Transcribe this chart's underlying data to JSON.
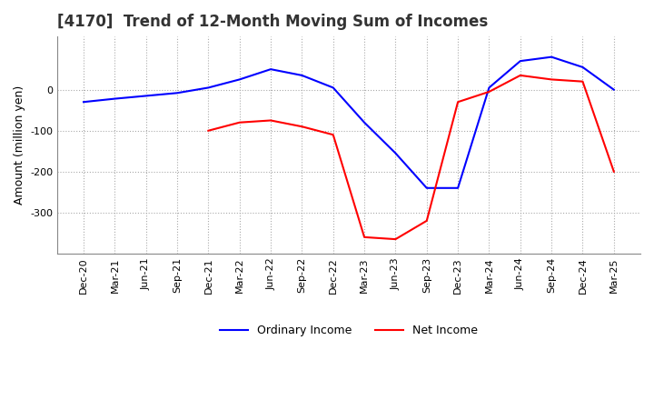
{
  "title": "[4170]  Trend of 12-Month Moving Sum of Incomes",
  "ylabel": "Amount (million yen)",
  "legend_labels": [
    "Ordinary Income",
    "Net Income"
  ],
  "line_colors": [
    "#0000ff",
    "#ff0000"
  ],
  "background_color": "#ffffff",
  "grid_color": "#aaaaaa",
  "x_labels": [
    "Dec-20",
    "Mar-21",
    "Jun-21",
    "Sep-21",
    "Dec-21",
    "Mar-22",
    "Jun-22",
    "Sep-22",
    "Dec-22",
    "Mar-23",
    "Jun-23",
    "Sep-23",
    "Dec-23",
    "Mar-24",
    "Jun-24",
    "Sep-24",
    "Dec-24",
    "Mar-25"
  ],
  "ordinary_income": [
    -30,
    -22,
    -15,
    -8,
    5,
    25,
    50,
    35,
    5,
    -80,
    -155,
    -240,
    -240,
    5,
    70,
    80,
    55,
    0
  ],
  "net_income": [
    null,
    null,
    null,
    null,
    -100,
    -80,
    -75,
    -90,
    -110,
    -360,
    -365,
    -320,
    -30,
    -5,
    35,
    25,
    20,
    -200
  ],
  "ylim": [
    -400,
    130
  ],
  "yticks": [
    0,
    -100,
    -200,
    -300
  ],
  "title_fontsize": 12,
  "axis_fontsize": 9,
  "tick_fontsize": 8
}
